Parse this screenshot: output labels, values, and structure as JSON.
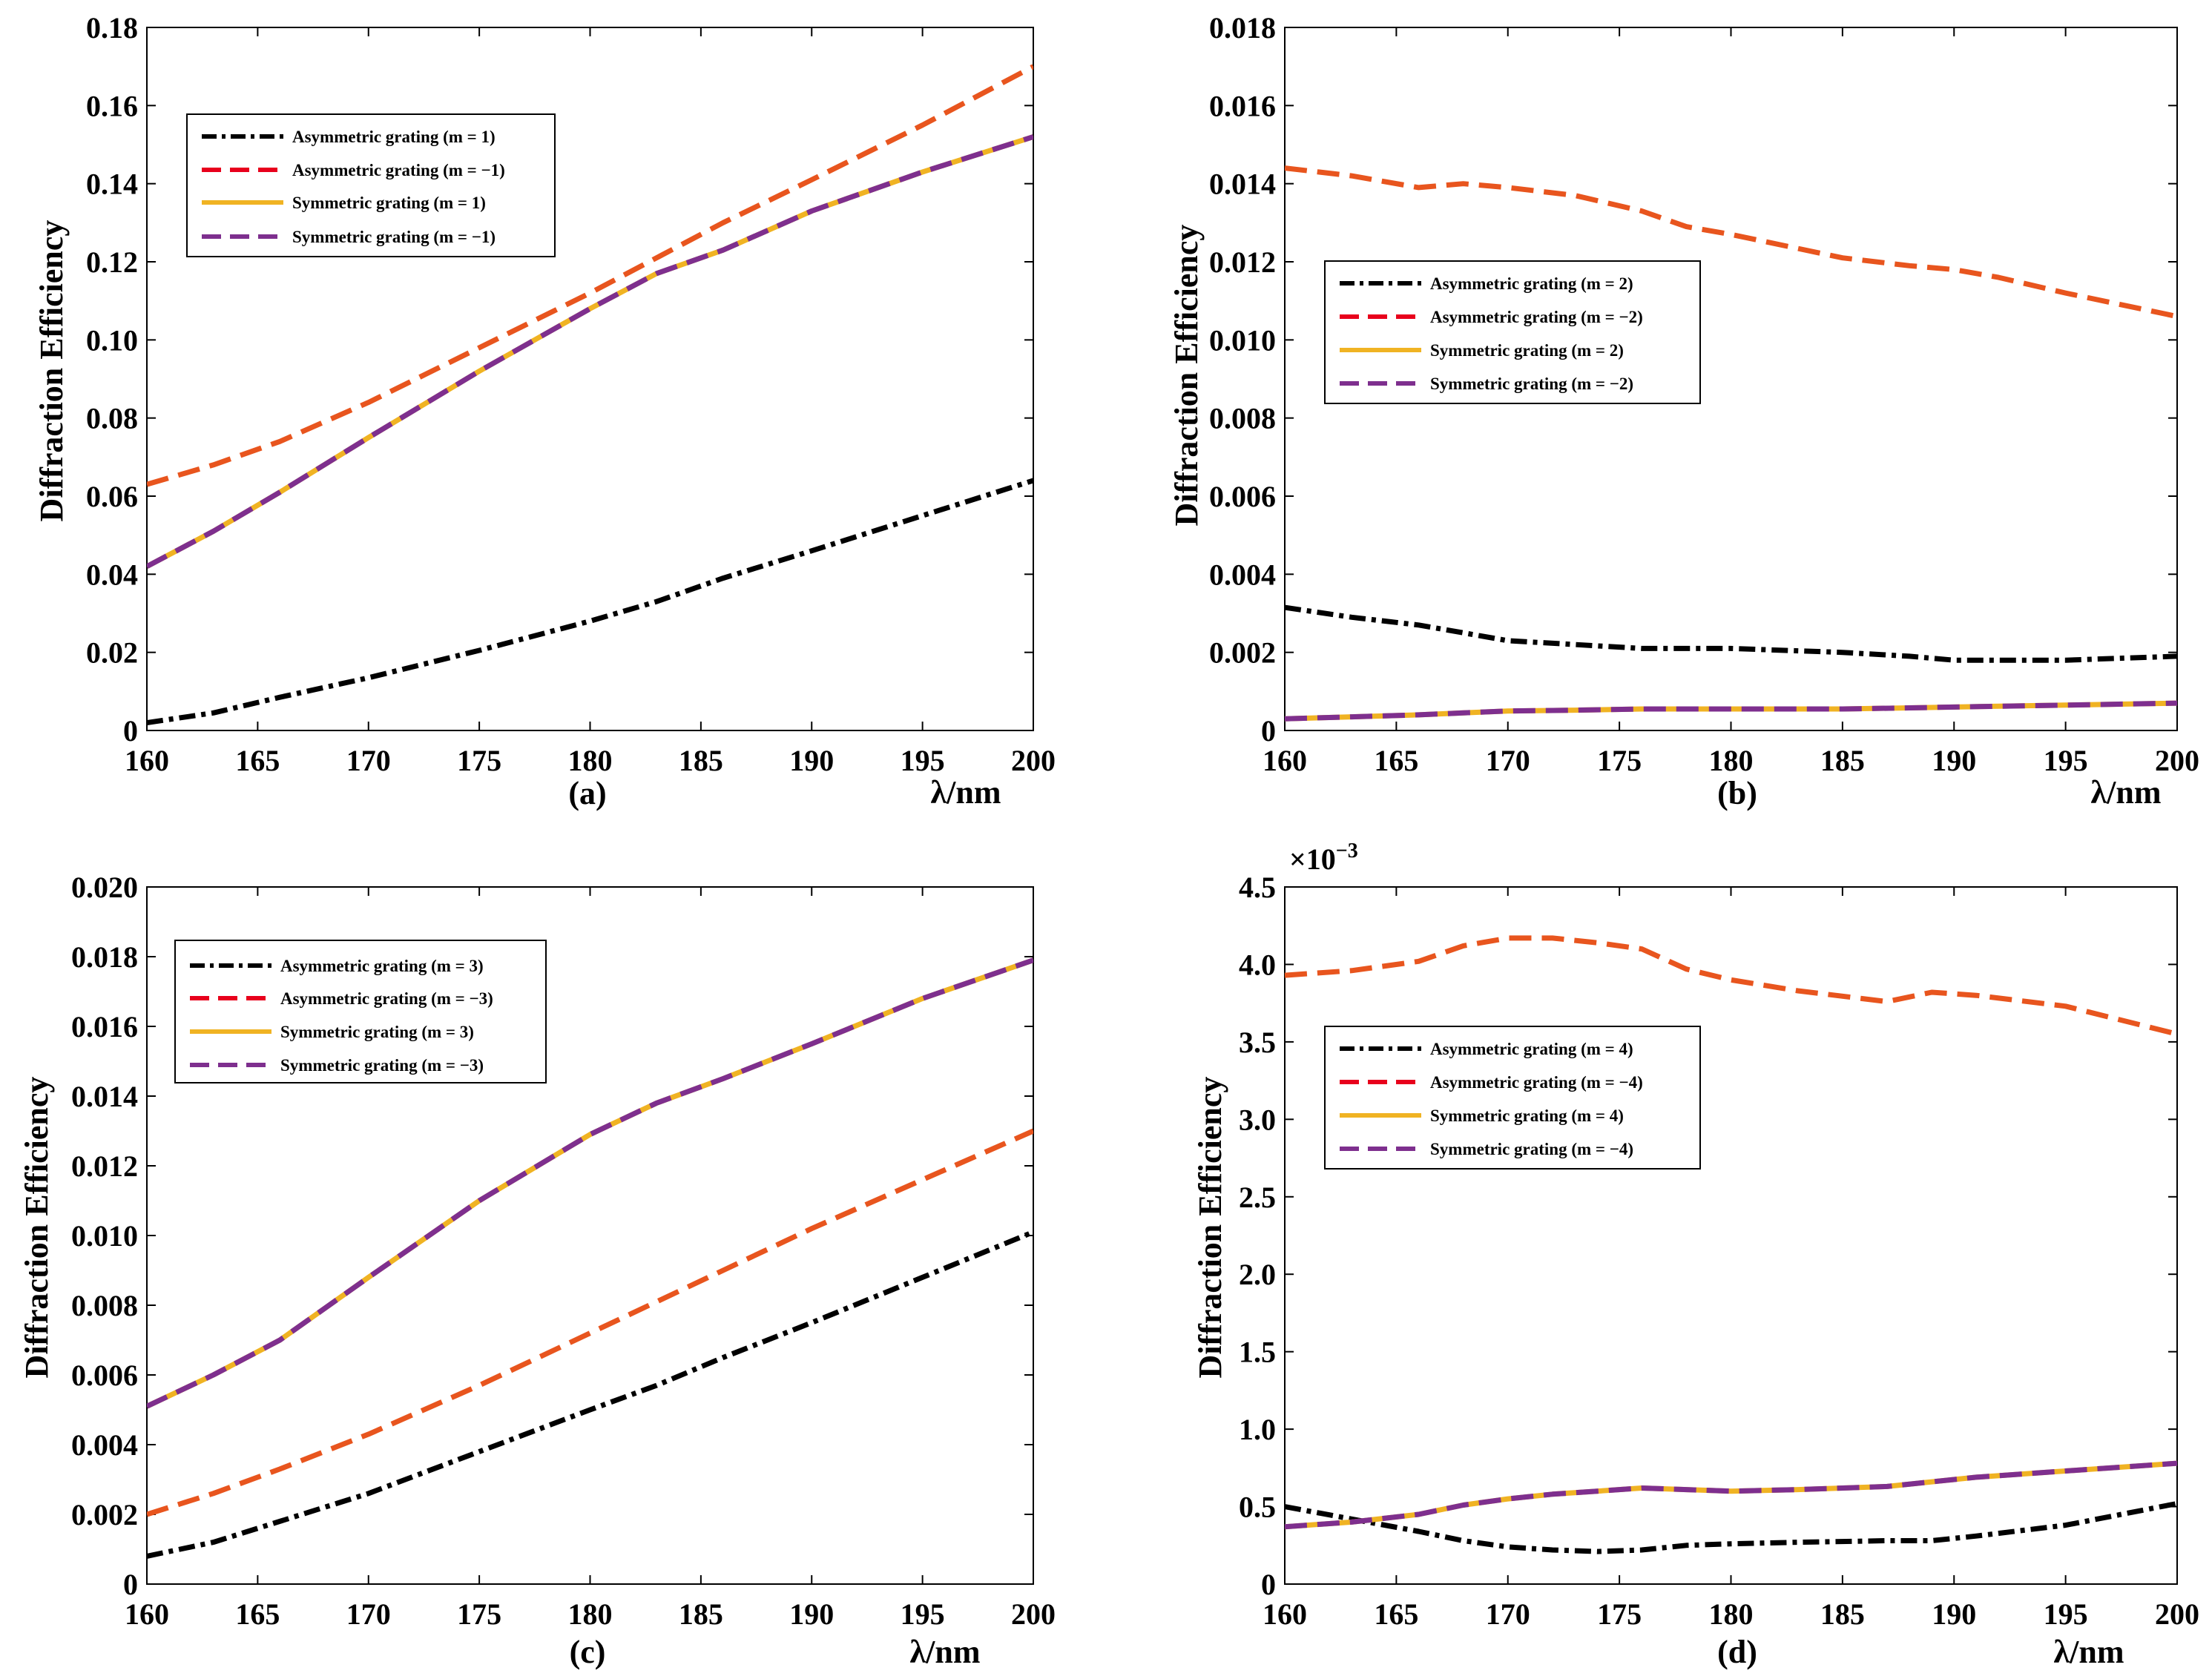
{
  "figure": {
    "colors": {
      "asym_pos": "#000000",
      "asym_neg": "#e8551e",
      "asym_neg_legend": "#e8001c",
      "sym_pos": "#f0b323",
      "sym_neg": "#7e2f8e"
    }
  },
  "chart_data": [
    {
      "id": "a",
      "type": "line",
      "panel_label": "(a)",
      "xlabel": "λ/nm",
      "ylabel": "Diffraction Efficiency",
      "xlim": [
        160,
        200
      ],
      "ylim": [
        0,
        0.18
      ],
      "xticks": [
        160,
        165,
        170,
        175,
        180,
        185,
        190,
        195,
        200
      ],
      "xtick_labels": [
        "160",
        "165",
        "170",
        "175",
        "180",
        "185",
        "190",
        "195",
        "200"
      ],
      "yticks": [
        0,
        0.02,
        0.04,
        0.06,
        0.08,
        0.1,
        0.12,
        0.14,
        0.16,
        0.18
      ],
      "ytick_labels": [
        "0",
        "0.02",
        "0.04",
        "0.06",
        "0.08",
        "0.10",
        "0.12",
        "0.14",
        "0.16",
        "0.18"
      ],
      "exponent_label": "",
      "legend_position": "top-left",
      "legend": [
        "Asymmetric grating (m = 1)",
        "Asymmetric grating (m = −1)",
        "Symmetric grating (m = 1)",
        "Symmetric grating (m = −1)"
      ],
      "x": [
        160,
        163,
        166,
        170,
        175,
        180,
        183,
        186,
        190,
        195,
        200
      ],
      "series": [
        {
          "name": "Asymmetric grating (m = 1)",
          "style": "asym_pos",
          "values": [
            0.002,
            0.0045,
            0.0085,
            0.0135,
            0.0205,
            0.028,
            0.033,
            0.039,
            0.046,
            0.055,
            0.064
          ]
        },
        {
          "name": "Asymmetric grating (m = −1)",
          "style": "asym_neg",
          "values": [
            0.063,
            0.068,
            0.074,
            0.084,
            0.098,
            0.112,
            0.121,
            0.13,
            0.141,
            0.155,
            0.17
          ]
        },
        {
          "name": "Symmetric grating (m = 1)",
          "style": "sym_pos",
          "values": [
            0.042,
            0.051,
            0.061,
            0.075,
            0.092,
            0.108,
            0.117,
            0.123,
            0.133,
            0.143,
            0.152
          ]
        },
        {
          "name": "Symmetric grating (m = −1)",
          "style": "sym_neg",
          "values": [
            0.042,
            0.051,
            0.061,
            0.075,
            0.092,
            0.108,
            0.117,
            0.123,
            0.133,
            0.143,
            0.152
          ]
        }
      ]
    },
    {
      "id": "b",
      "type": "line",
      "panel_label": "(b)",
      "xlabel": "λ/nm",
      "ylabel": "Diffraction Efficiency",
      "xlim": [
        160,
        200
      ],
      "ylim": [
        0,
        0.018
      ],
      "xticks": [
        160,
        165,
        170,
        175,
        180,
        185,
        190,
        195,
        200
      ],
      "xtick_labels": [
        "160",
        "165",
        "170",
        "175",
        "180",
        "185",
        "190",
        "195",
        "200"
      ],
      "yticks": [
        0,
        0.002,
        0.004,
        0.006,
        0.008,
        0.01,
        0.012,
        0.014,
        0.016,
        0.018
      ],
      "ytick_labels": [
        "0",
        "0.002",
        "0.004",
        "0.006",
        "0.008",
        "0.010",
        "0.012",
        "0.014",
        "0.016",
        "0.018"
      ],
      "exponent_label": "",
      "legend_position": "middle-left",
      "legend": [
        "Asymmetric grating (m = 2)",
        "Asymmetric grating (m = −2)",
        "Symmetric grating (m = 2)",
        "Symmetric grating (m = −2)"
      ],
      "x": [
        160,
        163,
        166,
        168,
        170,
        173,
        176,
        178,
        180,
        185,
        188,
        190,
        192,
        195,
        200
      ],
      "series": [
        {
          "name": "Asymmetric grating (m = 2)",
          "style": "asym_pos",
          "values": [
            0.00315,
            0.0029,
            0.0027,
            0.0025,
            0.0023,
            0.0022,
            0.0021,
            0.0021,
            0.0021,
            0.002,
            0.0019,
            0.0018,
            0.0018,
            0.0018,
            0.0019
          ]
        },
        {
          "name": "Asymmetric grating (m = −2)",
          "style": "asym_neg",
          "values": [
            0.0144,
            0.0142,
            0.0139,
            0.014,
            0.0139,
            0.0137,
            0.0133,
            0.0129,
            0.0127,
            0.0121,
            0.0119,
            0.0118,
            0.0116,
            0.0112,
            0.0106
          ]
        },
        {
          "name": "Symmetric grating (m = 2)",
          "style": "sym_pos",
          "values": [
            0.0003,
            0.00035,
            0.0004,
            0.00045,
            0.0005,
            0.00052,
            0.00055,
            0.00055,
            0.00055,
            0.00055,
            0.00058,
            0.0006,
            0.00062,
            0.00065,
            0.0007
          ]
        },
        {
          "name": "Symmetric grating (m = −2)",
          "style": "sym_neg",
          "values": [
            0.0003,
            0.00035,
            0.0004,
            0.00045,
            0.0005,
            0.00052,
            0.00055,
            0.00055,
            0.00055,
            0.00055,
            0.00058,
            0.0006,
            0.00062,
            0.00065,
            0.0007
          ]
        }
      ]
    },
    {
      "id": "c",
      "type": "line",
      "panel_label": "(c)",
      "xlabel": "λ/nm",
      "ylabel": "Diffraction Efficiency",
      "xlim": [
        160,
        200
      ],
      "ylim": [
        0,
        0.02
      ],
      "xticks": [
        160,
        165,
        170,
        175,
        180,
        185,
        190,
        195,
        200
      ],
      "xtick_labels": [
        "160",
        "165",
        "170",
        "175",
        "180",
        "185",
        "190",
        "195",
        "200"
      ],
      "yticks": [
        0,
        0.002,
        0.004,
        0.006,
        0.008,
        0.01,
        0.012,
        0.014,
        0.016,
        0.018,
        0.02
      ],
      "ytick_labels": [
        "0",
        "0.002",
        "0.004",
        "0.006",
        "0.008",
        "0.010",
        "0.012",
        "0.014",
        "0.016",
        "0.018",
        "0.020"
      ],
      "exponent_label": "",
      "legend_position": "top-left",
      "legend": [
        "Asymmetric grating (m = 3)",
        "Asymmetric grating (m = −3)",
        "Symmetric grating (m = 3)",
        "Symmetric grating (m = −3)"
      ],
      "x": [
        160,
        163,
        166,
        170,
        175,
        180,
        183,
        186,
        190,
        195,
        200
      ],
      "series": [
        {
          "name": "Asymmetric grating (m = 3)",
          "style": "asym_pos",
          "values": [
            0.0008,
            0.0012,
            0.0018,
            0.0026,
            0.0038,
            0.005,
            0.0057,
            0.0065,
            0.0075,
            0.0088,
            0.0101
          ]
        },
        {
          "name": "Asymmetric grating (m = −3)",
          "style": "asym_neg",
          "values": [
            0.002,
            0.0026,
            0.0033,
            0.0043,
            0.0057,
            0.0072,
            0.0081,
            0.009,
            0.0102,
            0.0116,
            0.013
          ]
        },
        {
          "name": "Symmetric grating (m = 3)",
          "style": "sym_pos",
          "values": [
            0.0051,
            0.006,
            0.007,
            0.0088,
            0.011,
            0.0129,
            0.0138,
            0.0145,
            0.0155,
            0.0168,
            0.0179
          ]
        },
        {
          "name": "Symmetric grating (m = −3)",
          "style": "sym_neg",
          "values": [
            0.0051,
            0.006,
            0.007,
            0.0088,
            0.011,
            0.0129,
            0.0138,
            0.0145,
            0.0155,
            0.0168,
            0.0179
          ]
        }
      ]
    },
    {
      "id": "d",
      "type": "line",
      "panel_label": "(d)",
      "xlabel": "λ/nm",
      "ylabel": "Diffraction Efficiency",
      "xlim": [
        160,
        200
      ],
      "ylim": [
        0,
        4.5
      ],
      "xticks": [
        160,
        165,
        170,
        175,
        180,
        185,
        190,
        195,
        200
      ],
      "xtick_labels": [
        "160",
        "165",
        "170",
        "175",
        "180",
        "185",
        "190",
        "195",
        "200"
      ],
      "yticks": [
        0,
        0.5,
        1.0,
        1.5,
        2.0,
        2.5,
        3.0,
        3.5,
        4.0,
        4.5
      ],
      "ytick_labels": [
        "0",
        "0.5",
        "1.0",
        "1.5",
        "2.0",
        "2.5",
        "3.0",
        "3.5",
        "4.0",
        "4.5"
      ],
      "exponent_label": "×10",
      "exponent_power": "−3",
      "legend_position": "middle-left",
      "legend": [
        "Asymmetric grating (m = 4)",
        "Asymmetric grating (m = −4)",
        "Symmetric grating (m = 4)",
        "Symmetric grating (m = −4)"
      ],
      "x": [
        160,
        163,
        166,
        168,
        170,
        172,
        174,
        176,
        178,
        180,
        183,
        187,
        189,
        191,
        195,
        200
      ],
      "series": [
        {
          "name": "Asymmetric grating (m = 4)",
          "style": "asym_pos",
          "values": [
            0.5,
            0.42,
            0.34,
            0.28,
            0.24,
            0.22,
            0.21,
            0.22,
            0.25,
            0.26,
            0.27,
            0.28,
            0.28,
            0.31,
            0.38,
            0.52
          ]
        },
        {
          "name": "Asymmetric grating (m = −4)",
          "style": "asym_neg",
          "values": [
            3.93,
            3.96,
            4.02,
            4.12,
            4.17,
            4.17,
            4.14,
            4.1,
            3.97,
            3.9,
            3.83,
            3.76,
            3.82,
            3.8,
            3.73,
            3.55
          ]
        },
        {
          "name": "Symmetric grating (m = 4)",
          "style": "sym_pos",
          "values": [
            0.37,
            0.4,
            0.45,
            0.51,
            0.55,
            0.58,
            0.6,
            0.62,
            0.61,
            0.6,
            0.61,
            0.63,
            0.66,
            0.69,
            0.73,
            0.78
          ]
        },
        {
          "name": "Symmetric grating (m = −4)",
          "style": "sym_neg",
          "values": [
            0.37,
            0.4,
            0.45,
            0.51,
            0.55,
            0.58,
            0.6,
            0.62,
            0.61,
            0.6,
            0.61,
            0.63,
            0.66,
            0.69,
            0.73,
            0.78
          ]
        }
      ]
    }
  ]
}
